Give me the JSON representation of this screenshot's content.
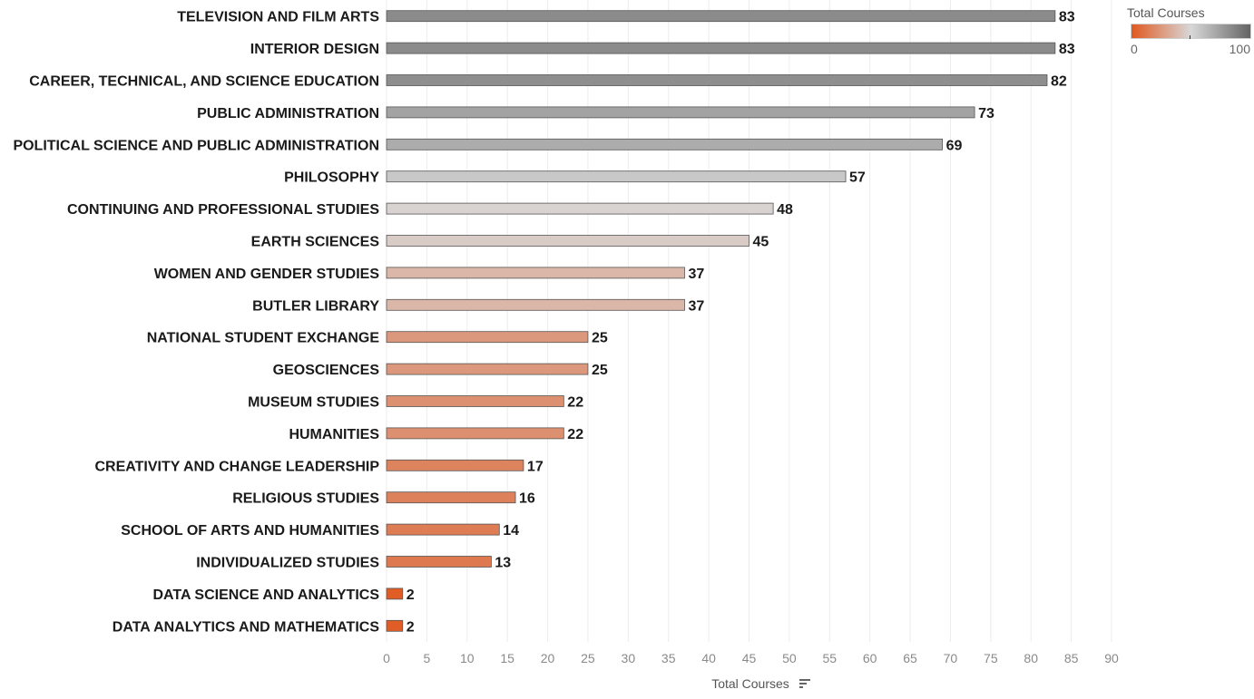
{
  "chart_data": {
    "type": "bar",
    "orientation": "horizontal",
    "categories": [
      "TELEVISION AND FILM ARTS",
      "INTERIOR DESIGN",
      "CAREER, TECHNICAL, AND SCIENCE EDUCATION",
      "PUBLIC ADMINISTRATION",
      "POLITICAL SCIENCE AND PUBLIC ADMINISTRATION",
      "PHILOSOPHY",
      "CONTINUING AND PROFESSIONAL STUDIES",
      "EARTH SCIENCES",
      "WOMEN AND GENDER STUDIES",
      "BUTLER LIBRARY",
      "NATIONAL STUDENT EXCHANGE",
      "GEOSCIENCES",
      "MUSEUM STUDIES",
      "HUMANITIES",
      "CREATIVITY AND CHANGE LEADERSHIP",
      "RELIGIOUS STUDIES",
      "SCHOOL OF ARTS AND HUMANITIES",
      "INDIVIDUALIZED STUDIES",
      "DATA SCIENCE AND ANALYTICS",
      "DATA ANALYTICS AND MATHEMATICS"
    ],
    "values": [
      83,
      83,
      82,
      73,
      69,
      57,
      48,
      45,
      37,
      37,
      25,
      25,
      22,
      22,
      17,
      16,
      14,
      13,
      2,
      2
    ],
    "xlabel": "Total Courses",
    "ylabel": "",
    "xlim": [
      0,
      90
    ],
    "xticks": [
      0,
      5,
      10,
      15,
      20,
      25,
      30,
      35,
      40,
      45,
      50,
      55,
      60,
      65,
      70,
      75,
      80,
      85,
      90
    ],
    "grid": "vertical",
    "sorted": "descending",
    "legend": {
      "title": "Total Courses",
      "min": 0,
      "max": 100,
      "min_label": "0",
      "max_label": "100",
      "placement": "top-right",
      "colors": [
        "#e0581f",
        "#d8d8d8",
        "#646464"
      ]
    }
  }
}
